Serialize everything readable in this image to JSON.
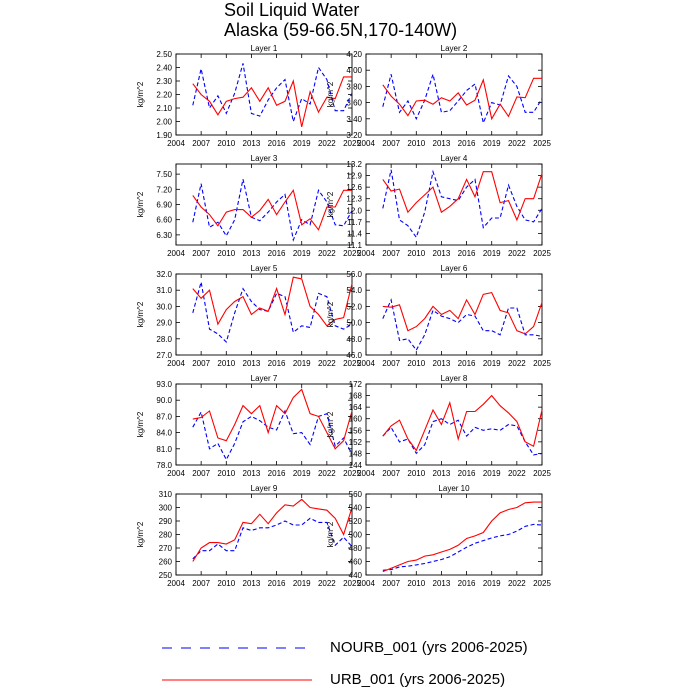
{
  "title_line1": "Soil Liquid Water",
  "title_line2": "Alaska (59-66.5N,170-140W)",
  "colors": {
    "nourb": "#0000ff",
    "urb": "#ff0000"
  },
  "legend": [
    {
      "label": "NOURB_001 (yrs 2006-2025)",
      "style": "dashed",
      "color": "#0000ff"
    },
    {
      "label": "URB_001 (yrs 2006-2025)",
      "style": "solid",
      "color": "#ff0000"
    }
  ],
  "chart_data": [
    {
      "type": "line",
      "title": "Layer 1",
      "ylabel": "kg/m^2",
      "x": [
        2006,
        2007,
        2008,
        2009,
        2010,
        2011,
        2012,
        2013,
        2014,
        2015,
        2016,
        2017,
        2018,
        2019,
        2020,
        2021,
        2022,
        2023,
        2024,
        2025
      ],
      "xlim": [
        2004,
        2025
      ],
      "xticks": [
        2004,
        2007,
        2010,
        2013,
        2016,
        2019,
        2022,
        2025
      ],
      "ylim": [
        1.9,
        2.5
      ],
      "yticks": [
        "1.90",
        "2.00",
        "2.10",
        "2.20",
        "2.30",
        "2.40",
        "2.50"
      ],
      "series": [
        {
          "name": "NOURB_001",
          "values": [
            2.12,
            2.39,
            2.1,
            2.19,
            2.06,
            2.21,
            2.43,
            2.06,
            2.04,
            2.16,
            2.25,
            2.31,
            2.0,
            2.17,
            2.13,
            2.4,
            2.31,
            2.08,
            2.08,
            2.21
          ]
        },
        {
          "name": "URB_001",
          "values": [
            2.28,
            2.2,
            2.15,
            2.05,
            2.15,
            2.17,
            2.18,
            2.25,
            2.15,
            2.25,
            2.12,
            2.15,
            2.3,
            1.96,
            2.22,
            2.07,
            2.18,
            2.17,
            2.33,
            2.33
          ]
        }
      ]
    },
    {
      "type": "line",
      "title": "Layer 2",
      "ylabel": "kg/m^2",
      "x": [
        2006,
        2007,
        2008,
        2009,
        2010,
        2011,
        2012,
        2013,
        2014,
        2015,
        2016,
        2017,
        2018,
        2019,
        2020,
        2021,
        2022,
        2023,
        2024,
        2025
      ],
      "xlim": [
        2004,
        2025
      ],
      "xticks": [
        2004,
        2007,
        2010,
        2013,
        2016,
        2019,
        2022,
        2025
      ],
      "ylim": [
        3.2,
        4.2
      ],
      "yticks": [
        "3.20",
        "3.40",
        "3.60",
        "3.80",
        "4.00",
        "4.20"
      ],
      "series": [
        {
          "name": "NOURB_001",
          "values": [
            3.55,
            3.95,
            3.48,
            3.62,
            3.4,
            3.63,
            3.95,
            3.48,
            3.5,
            3.62,
            3.75,
            3.83,
            3.35,
            3.6,
            3.57,
            3.93,
            3.8,
            3.48,
            3.48,
            3.65
          ]
        },
        {
          "name": "URB_001",
          "values": [
            3.82,
            3.68,
            3.58,
            3.44,
            3.62,
            3.63,
            3.58,
            3.66,
            3.62,
            3.72,
            3.57,
            3.63,
            3.88,
            3.4,
            3.58,
            3.43,
            3.67,
            3.66,
            3.9,
            3.9
          ]
        }
      ]
    },
    {
      "type": "line",
      "title": "Layer 3",
      "ylabel": "kg/m^2",
      "x": [
        2006,
        2007,
        2008,
        2009,
        2010,
        2011,
        2012,
        2013,
        2014,
        2015,
        2016,
        2017,
        2018,
        2019,
        2020,
        2021,
        2022,
        2023,
        2024,
        2025
      ],
      "xlim": [
        2004,
        2025
      ],
      "xticks": [
        2004,
        2007,
        2010,
        2013,
        2016,
        2019,
        2022,
        2025
      ],
      "ylim": [
        6.1,
        7.7
      ],
      "yticks": [
        "6.30",
        "6.60",
        "6.90",
        "7.20",
        "7.50"
      ],
      "series": [
        {
          "name": "NOURB_001",
          "values": [
            6.55,
            7.31,
            6.45,
            6.55,
            6.28,
            6.6,
            7.4,
            6.65,
            6.58,
            6.75,
            6.95,
            7.1,
            6.2,
            6.6,
            6.5,
            7.18,
            6.95,
            6.5,
            6.48,
            6.78
          ]
        },
        {
          "name": "URB_001",
          "values": [
            7.08,
            6.85,
            6.7,
            6.48,
            6.75,
            6.8,
            6.8,
            6.65,
            6.78,
            7.0,
            6.7,
            6.95,
            7.18,
            6.5,
            6.62,
            6.4,
            6.85,
            6.85,
            7.18,
            7.18
          ]
        }
      ]
    },
    {
      "type": "line",
      "title": "Layer 4",
      "ylabel": "kg/m^2",
      "x": [
        2006,
        2007,
        2008,
        2009,
        2010,
        2011,
        2012,
        2013,
        2014,
        2015,
        2016,
        2017,
        2018,
        2019,
        2020,
        2021,
        2022,
        2023,
        2024,
        2025
      ],
      "xlim": [
        2004,
        2025
      ],
      "xticks": [
        2004,
        2007,
        2010,
        2013,
        2016,
        2019,
        2022,
        2025
      ],
      "ylim": [
        11.1,
        13.2
      ],
      "yticks": [
        "11.1",
        "11.4",
        "11.7",
        "12.0",
        "12.3",
        "12.6",
        "12.9",
        "13.2"
      ],
      "series": [
        {
          "name": "NOURB_001",
          "values": [
            12.05,
            13.05,
            11.75,
            11.6,
            11.3,
            11.95,
            13.0,
            12.35,
            12.3,
            12.25,
            12.6,
            12.8,
            11.55,
            11.8,
            11.8,
            12.65,
            12.1,
            11.75,
            11.7,
            12.05
          ]
        },
        {
          "name": "URB_001",
          "values": [
            12.8,
            12.5,
            12.55,
            11.95,
            12.2,
            12.4,
            12.6,
            11.95,
            12.1,
            12.3,
            12.8,
            12.35,
            13.0,
            13.0,
            12.2,
            12.25,
            11.75,
            12.3,
            12.3,
            12.95
          ]
        }
      ]
    },
    {
      "type": "line",
      "title": "Layer 5",
      "ylabel": "kg/m^2",
      "x": [
        2006,
        2007,
        2008,
        2009,
        2010,
        2011,
        2012,
        2013,
        2014,
        2015,
        2016,
        2017,
        2018,
        2019,
        2020,
        2021,
        2022,
        2023,
        2024,
        2025
      ],
      "xlim": [
        2004,
        2025
      ],
      "xticks": [
        2004,
        2007,
        2010,
        2013,
        2016,
        2019,
        2022,
        2025
      ],
      "ylim": [
        27.0,
        32.0
      ],
      "yticks": [
        "27.0",
        "28.0",
        "29.0",
        "30.0",
        "31.0",
        "32.0"
      ],
      "series": [
        {
          "name": "NOURB_001",
          "values": [
            29.6,
            31.5,
            28.6,
            28.3,
            27.8,
            29.6,
            31.1,
            30.3,
            29.8,
            29.7,
            30.8,
            30.6,
            28.4,
            28.8,
            28.7,
            30.8,
            30.6,
            28.8,
            28.6,
            28.9
          ]
        },
        {
          "name": "URB_001",
          "values": [
            31.1,
            30.5,
            31.0,
            28.9,
            29.8,
            30.3,
            30.6,
            29.5,
            29.9,
            29.7,
            31.1,
            29.5,
            31.8,
            31.7,
            30.0,
            29.5,
            28.8,
            29.2,
            29.3,
            31.4
          ]
        }
      ]
    },
    {
      "type": "line",
      "title": "Layer 6",
      "ylabel": "kg/m^2",
      "x": [
        2006,
        2007,
        2008,
        2009,
        2010,
        2011,
        2012,
        2013,
        2014,
        2015,
        2016,
        2017,
        2018,
        2019,
        2020,
        2021,
        2022,
        2023,
        2024,
        2025
      ],
      "xlim": [
        2004,
        2025
      ],
      "xticks": [
        2004,
        2007,
        2010,
        2013,
        2016,
        2019,
        2022,
        2025
      ],
      "ylim": [
        46.0,
        56.0
      ],
      "yticks": [
        "46.0",
        "48.0",
        "50.0",
        "52.0",
        "54.0",
        "56.0"
      ],
      "series": [
        {
          "name": "NOURB_001",
          "values": [
            50.5,
            52.8,
            47.8,
            48.0,
            46.6,
            48.5,
            51.5,
            50.8,
            50.5,
            50.0,
            51.0,
            50.8,
            49.0,
            49.0,
            48.5,
            51.8,
            51.8,
            48.5,
            48.5,
            48.3
          ]
        },
        {
          "name": "URB_001",
          "values": [
            52.0,
            51.9,
            52.2,
            49.0,
            49.5,
            50.5,
            52.0,
            51.0,
            51.5,
            50.5,
            52.8,
            51.0,
            53.5,
            53.7,
            51.5,
            51.2,
            49.0,
            48.6,
            49.5,
            52.5
          ]
        }
      ]
    },
    {
      "type": "line",
      "title": "Layer 7",
      "ylabel": "kg/m^2",
      "x": [
        2006,
        2007,
        2008,
        2009,
        2010,
        2011,
        2012,
        2013,
        2014,
        2015,
        2016,
        2017,
        2018,
        2019,
        2020,
        2021,
        2022,
        2023,
        2024,
        2025
      ],
      "xlim": [
        2004,
        2025
      ],
      "xticks": [
        2004,
        2007,
        2010,
        2013,
        2016,
        2019,
        2022,
        2025
      ],
      "ylim": [
        78.0,
        93.0
      ],
      "yticks": [
        "78.0",
        "81.0",
        "84.0",
        "87.0",
        "90.0",
        "93.0"
      ],
      "series": [
        {
          "name": "NOURB_001",
          "values": [
            85.0,
            87.8,
            81.0,
            82.0,
            79.0,
            82.0,
            86.0,
            87.0,
            86.2,
            85.0,
            84.5,
            88.0,
            83.8,
            84.0,
            81.8,
            87.0,
            87.5,
            81.5,
            83.0,
            80.0
          ]
        },
        {
          "name": "URB_001",
          "values": [
            86.5,
            86.8,
            88.0,
            83.0,
            82.5,
            85.5,
            89.0,
            87.5,
            89.0,
            84.0,
            89.0,
            87.5,
            90.5,
            92.0,
            87.5,
            87.0,
            84.0,
            81.0,
            82.5,
            88.0
          ]
        }
      ]
    },
    {
      "type": "line",
      "title": "Layer 8",
      "ylabel": "kg/m^2",
      "x": [
        2006,
        2007,
        2008,
        2009,
        2010,
        2011,
        2012,
        2013,
        2014,
        2015,
        2016,
        2017,
        2018,
        2019,
        2020,
        2021,
        2022,
        2023,
        2024,
        2025
      ],
      "xlim": [
        2004,
        2025
      ],
      "xticks": [
        2004,
        2007,
        2010,
        2013,
        2016,
        2019,
        2022,
        2025
      ],
      "ylim": [
        144,
        172
      ],
      "yticks": [
        "144",
        "148",
        "152",
        "156",
        "160",
        "164",
        "168",
        "172"
      ],
      "series": [
        {
          "name": "NOURB_001",
          "values": [
            154.0,
            157.0,
            152.0,
            153.0,
            148.0,
            151.0,
            159.0,
            160.0,
            158.0,
            159.5,
            154.0,
            157.0,
            156.0,
            156.5,
            156.0,
            158.0,
            157.5,
            152.0,
            147.5,
            148.0
          ]
        },
        {
          "name": "URB_001",
          "values": [
            154.0,
            157.5,
            159.5,
            153.0,
            149.0,
            156.0,
            163.0,
            158.0,
            165.5,
            153.0,
            162.5,
            162.5,
            165.0,
            168.0,
            164.5,
            162.0,
            159.0,
            152.0,
            150.5,
            163.0
          ]
        }
      ]
    },
    {
      "type": "line",
      "title": "Layer 9",
      "ylabel": "kg/m^2",
      "x": [
        2006,
        2007,
        2008,
        2009,
        2010,
        2011,
        2012,
        2013,
        2014,
        2015,
        2016,
        2017,
        2018,
        2019,
        2020,
        2021,
        2022,
        2023,
        2024,
        2025
      ],
      "xlim": [
        2004,
        2025
      ],
      "xticks": [
        2004,
        2007,
        2010,
        2013,
        2016,
        2019,
        2022,
        2025
      ],
      "ylim": [
        250,
        310
      ],
      "yticks": [
        "250",
        "260",
        "270",
        "280",
        "290",
        "300",
        "310"
      ],
      "series": [
        {
          "name": "NOURB_001",
          "values": [
            262,
            268,
            268,
            273,
            268,
            268,
            285,
            283,
            285,
            285,
            287,
            290,
            287,
            287,
            292,
            289,
            289,
            272,
            278,
            271
          ]
        },
        {
          "name": "URB_001",
          "values": [
            260,
            270,
            274,
            274,
            273,
            276,
            289,
            288,
            295,
            288,
            296,
            302,
            301,
            306,
            300,
            299,
            298,
            292,
            280,
            300
          ]
        }
      ]
    },
    {
      "type": "line",
      "title": "Layer 10",
      "ylabel": "kg/m^2",
      "x": [
        2006,
        2007,
        2008,
        2009,
        2010,
        2011,
        2012,
        2013,
        2014,
        2015,
        2016,
        2017,
        2018,
        2019,
        2020,
        2021,
        2022,
        2023,
        2024,
        2025
      ],
      "xlim": [
        2004,
        2025
      ],
      "xticks": [
        2004,
        2007,
        2010,
        2013,
        2016,
        2019,
        2022,
        2025
      ],
      "ylim": [
        440,
        560
      ],
      "yticks": [
        "440",
        "460",
        "480",
        "500",
        "520",
        "540",
        "560"
      ],
      "series": [
        {
          "name": "NOURB_001",
          "values": [
            447,
            448,
            452,
            453,
            455,
            457,
            460,
            463,
            467,
            474,
            481,
            487,
            491,
            495,
            498,
            500,
            505,
            512,
            515,
            514
          ]
        },
        {
          "name": "URB_001",
          "values": [
            445,
            450,
            455,
            460,
            462,
            468,
            470,
            474,
            478,
            484,
            494,
            498,
            503,
            520,
            532,
            537,
            540,
            547,
            548,
            548
          ]
        }
      ]
    }
  ]
}
